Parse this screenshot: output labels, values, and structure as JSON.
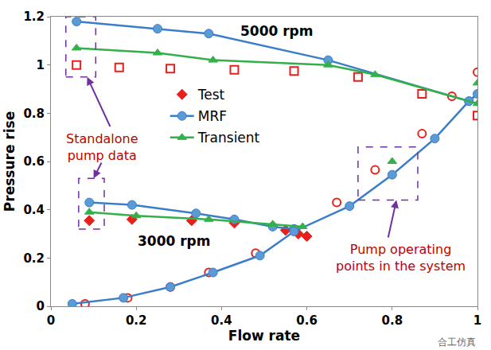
{
  "chart_data": {
    "type": "line",
    "x_label": "Flow rate",
    "y_label": "Pressure rise",
    "xlim": [
      0,
      1
    ],
    "ylim": [
      0,
      1.2
    ],
    "xticks": [
      0,
      0.2,
      0.4,
      0.6,
      0.8,
      1
    ],
    "yticks": [
      0,
      0.2,
      0.4,
      0.6,
      0.8,
      1,
      1.2
    ],
    "grid": false,
    "legend": "center",
    "series": [
      {
        "name": "Test",
        "color": "#e8201c",
        "marker": "diamond",
        "line_style": "none",
        "x": [
          0.09,
          0.19,
          0.33,
          0.43,
          0.55,
          0.58,
          0.6
        ],
        "values": [
          0.355,
          0.36,
          0.355,
          0.345,
          0.315,
          0.3,
          0.29
        ]
      },
      {
        "name": "Test",
        "color": "#e8201c",
        "marker": "square-open",
        "line_style": "none",
        "x": [
          0.06,
          0.16,
          0.28,
          0.43,
          0.57,
          0.72,
          0.87,
          1.0
        ],
        "values": [
          1.0,
          0.99,
          0.985,
          0.98,
          0.975,
          0.95,
          0.88,
          0.79
        ]
      },
      {
        "name": "Test",
        "color": "#e8201c",
        "marker": "circle-open",
        "line_style": "none",
        "x": [
          0.08,
          0.18,
          0.28,
          0.37,
          0.48,
          0.57,
          0.67,
          0.76,
          0.87,
          0.94,
          1.0
        ],
        "values": [
          0.01,
          0.035,
          0.08,
          0.14,
          0.22,
          0.32,
          0.43,
          0.565,
          0.715,
          0.87,
          0.97
        ]
      },
      {
        "name": "MRF",
        "color": "#3a7dc9",
        "marker": "circle",
        "line_style": "solid",
        "x": [
          0.06,
          0.25,
          0.37,
          0.65,
          0.98
        ],
        "values": [
          1.18,
          1.15,
          1.13,
          1.02,
          0.85
        ]
      },
      {
        "name": "MRF",
        "color": "#3a7dc9",
        "marker": "circle",
        "line_style": "solid",
        "x": [
          0.09,
          0.19,
          0.34,
          0.43,
          0.52,
          0.57
        ],
        "values": [
          0.43,
          0.42,
          0.385,
          0.36,
          0.33,
          0.32
        ]
      },
      {
        "name": "MRF",
        "color": "#3a7dc9",
        "marker": "circle",
        "line_style": "solid",
        "x": [
          0.05,
          0.17,
          0.28,
          0.38,
          0.49,
          0.57,
          0.7,
          0.8,
          0.9,
          0.98,
          1.0
        ],
        "values": [
          0.01,
          0.035,
          0.08,
          0.14,
          0.21,
          0.31,
          0.415,
          0.545,
          0.695,
          0.85,
          0.88
        ]
      },
      {
        "name": "Transient",
        "color": "#33b04a",
        "marker": "triangle-up",
        "line_style": "solid",
        "x": [
          0.06,
          0.25,
          0.38,
          0.65,
          0.76,
          1.0
        ],
        "values": [
          1.07,
          1.05,
          1.02,
          1.0,
          0.96,
          0.84
        ]
      },
      {
        "name": "Transient",
        "color": "#33b04a",
        "marker": "triangle-up",
        "line_style": "solid",
        "x": [
          0.09,
          0.2,
          0.37,
          0.52,
          0.59
        ],
        "values": [
          0.39,
          0.375,
          0.36,
          0.34,
          0.33
        ]
      },
      {
        "name": "Transient",
        "color": "#33b04a",
        "marker": "triangle-up",
        "line_style": "none",
        "x": [
          0.8,
          1.0
        ],
        "values": [
          0.6,
          0.925
        ]
      }
    ],
    "annotations": [
      {
        "text": "5000 rpm"
      },
      {
        "text": "3000 rpm"
      },
      {
        "text": "Standalone\npump data"
      },
      {
        "text": "Pump operating\npoints in the system"
      },
      {
        "text": "合工仿真"
      }
    ]
  }
}
